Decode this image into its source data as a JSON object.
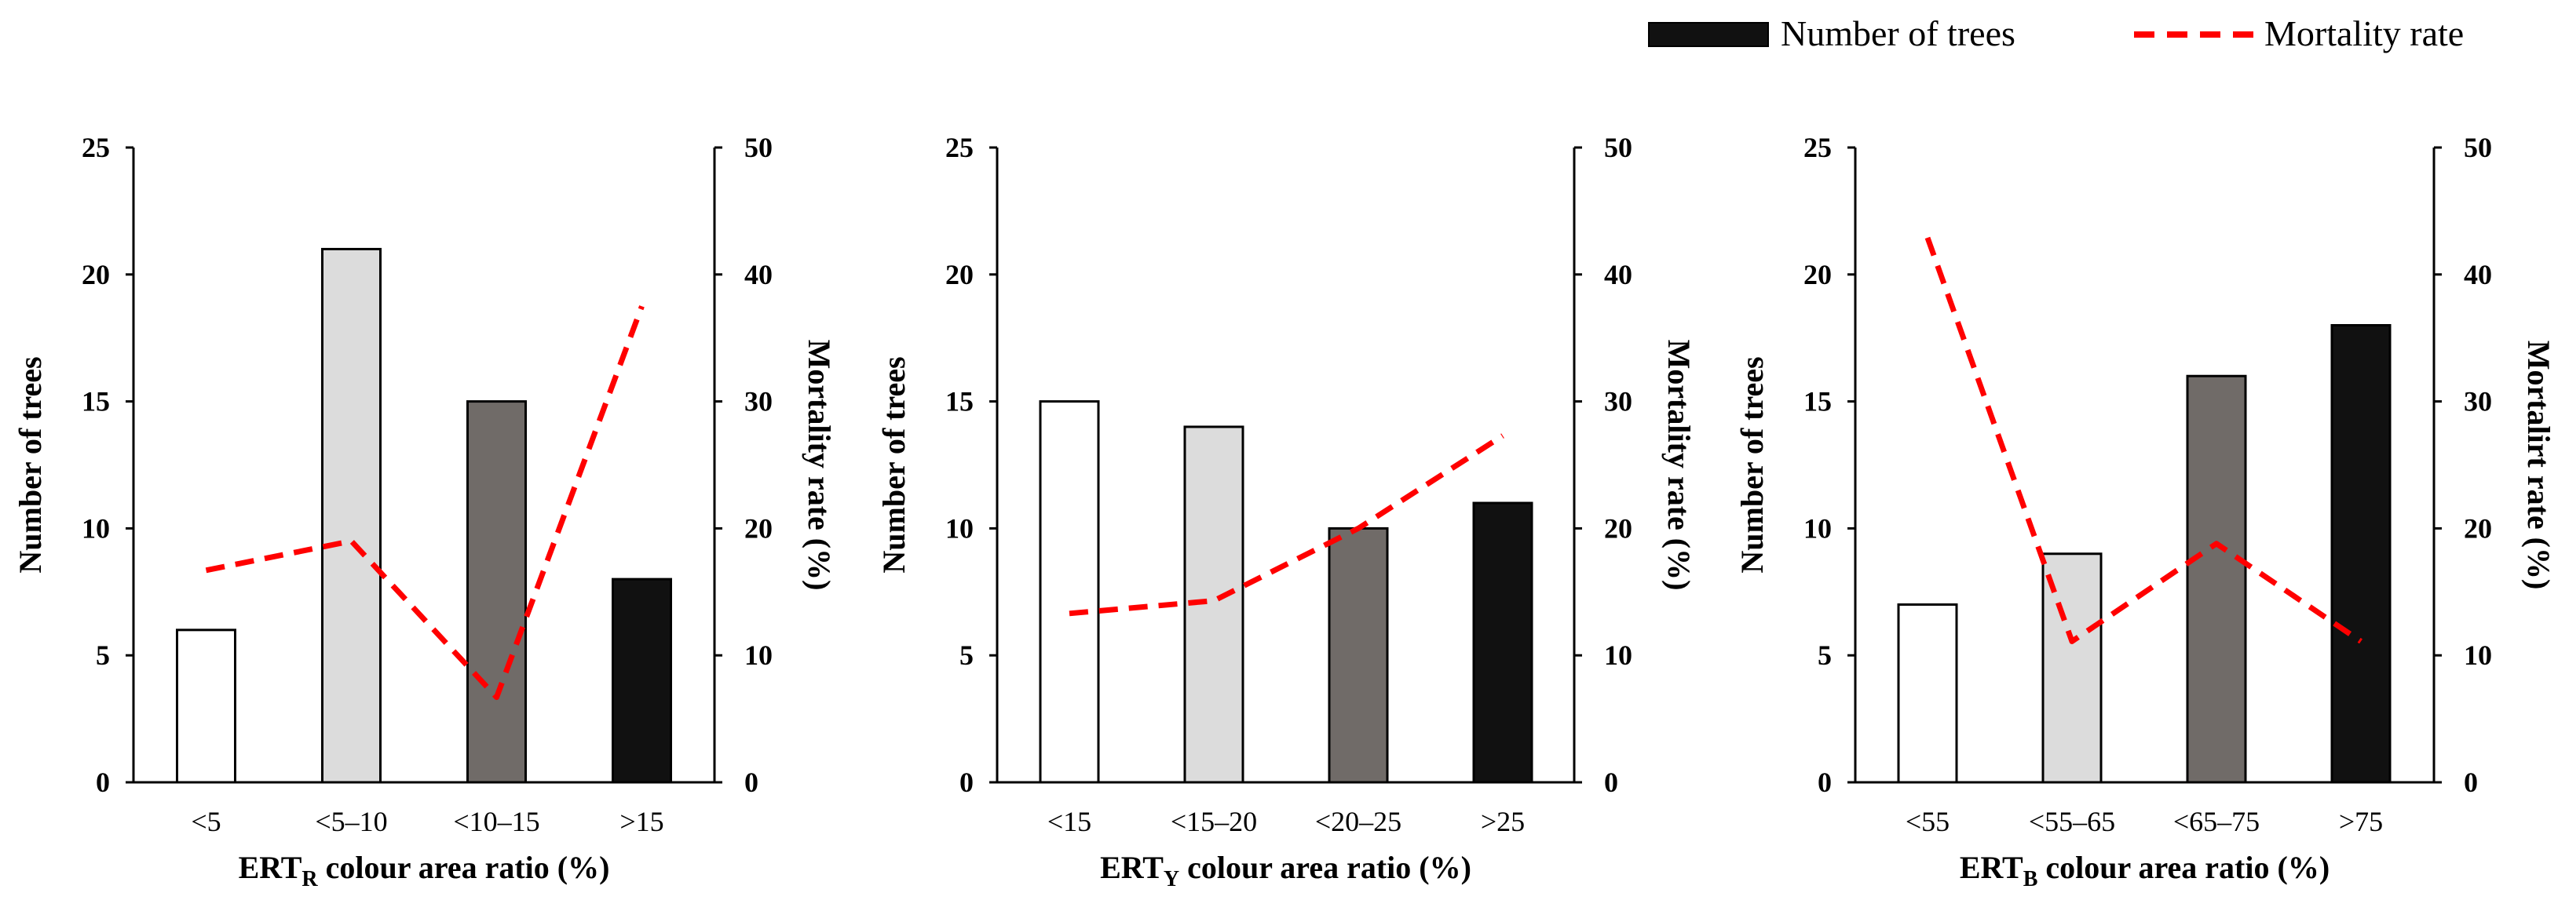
{
  "colors": {
    "bars": [
      "#ffffff",
      "#dcdcdc",
      "#706b68",
      "#111111"
    ],
    "bar_stroke": "#000000",
    "line": "#ff0000"
  },
  "legend": {
    "bar_label": "Number of trees",
    "line_label": "Mortality rate"
  },
  "chart_data": [
    {
      "type": "bar",
      "title": "",
      "categories": [
        "<5",
        "<5–10",
        "<10–15",
        ">15"
      ],
      "series": [
        {
          "name": "Number of trees",
          "axis": "left",
          "kind": "bar",
          "values": [
            6,
            21,
            15,
            8
          ]
        },
        {
          "name": "Mortality rate",
          "axis": "right",
          "kind": "line",
          "values": [
            16.7,
            19.0,
            6.7,
            37.5
          ]
        }
      ],
      "xlabel_main": "ERT",
      "xlabel_sub": "R",
      "xlabel_rest": " colour area ratio (%)",
      "ylabel": "Number of trees",
      "y2label": "Mortality rate (%)",
      "ylim": [
        0,
        25
      ],
      "y2lim": [
        0,
        50
      ],
      "yticks": [
        "0",
        "5",
        "10",
        "15",
        "20",
        "25"
      ],
      "y2ticks": [
        "0",
        "10",
        "20",
        "30",
        "40",
        "50"
      ]
    },
    {
      "type": "bar",
      "title": "",
      "categories": [
        "<15",
        "<15–20",
        "<20–25",
        ">25"
      ],
      "series": [
        {
          "name": "Number of trees",
          "axis": "left",
          "kind": "bar",
          "values": [
            15,
            14,
            10,
            11
          ]
        },
        {
          "name": "Mortality rate",
          "axis": "right",
          "kind": "line",
          "values": [
            13.3,
            14.3,
            20.0,
            27.3
          ]
        }
      ],
      "xlabel_main": "ERT",
      "xlabel_sub": "Y",
      "xlabel_rest": " colour area ratio (%)",
      "ylabel": "Number of trees",
      "y2label": "Mortality rate (%)",
      "ylim": [
        0,
        25
      ],
      "y2lim": [
        0,
        50
      ],
      "yticks": [
        "0",
        "5",
        "10",
        "15",
        "20",
        "25"
      ],
      "y2ticks": [
        "0",
        "10",
        "20",
        "30",
        "40",
        "50"
      ]
    },
    {
      "type": "bar",
      "title": "",
      "categories": [
        "<55",
        "<55–65",
        "<65–75",
        ">75"
      ],
      "series": [
        {
          "name": "Number of trees",
          "axis": "left",
          "kind": "bar",
          "values": [
            7,
            9,
            16,
            18
          ]
        },
        {
          "name": "Mortality rate",
          "axis": "right",
          "kind": "line",
          "values": [
            42.9,
            11.1,
            18.8,
            11.1
          ]
        }
      ],
      "xlabel_main": "ERT",
      "xlabel_sub": "B",
      "xlabel_rest": " colour area ratio (%)",
      "ylabel": "Number of trees",
      "y2label": "Mortalirt rate (%)",
      "ylim": [
        0,
        25
      ],
      "y2lim": [
        0,
        50
      ],
      "yticks": [
        "0",
        "5",
        "10",
        "15",
        "20",
        "25"
      ],
      "y2ticks": [
        "0",
        "10",
        "20",
        "30",
        "40",
        "50"
      ]
    }
  ]
}
